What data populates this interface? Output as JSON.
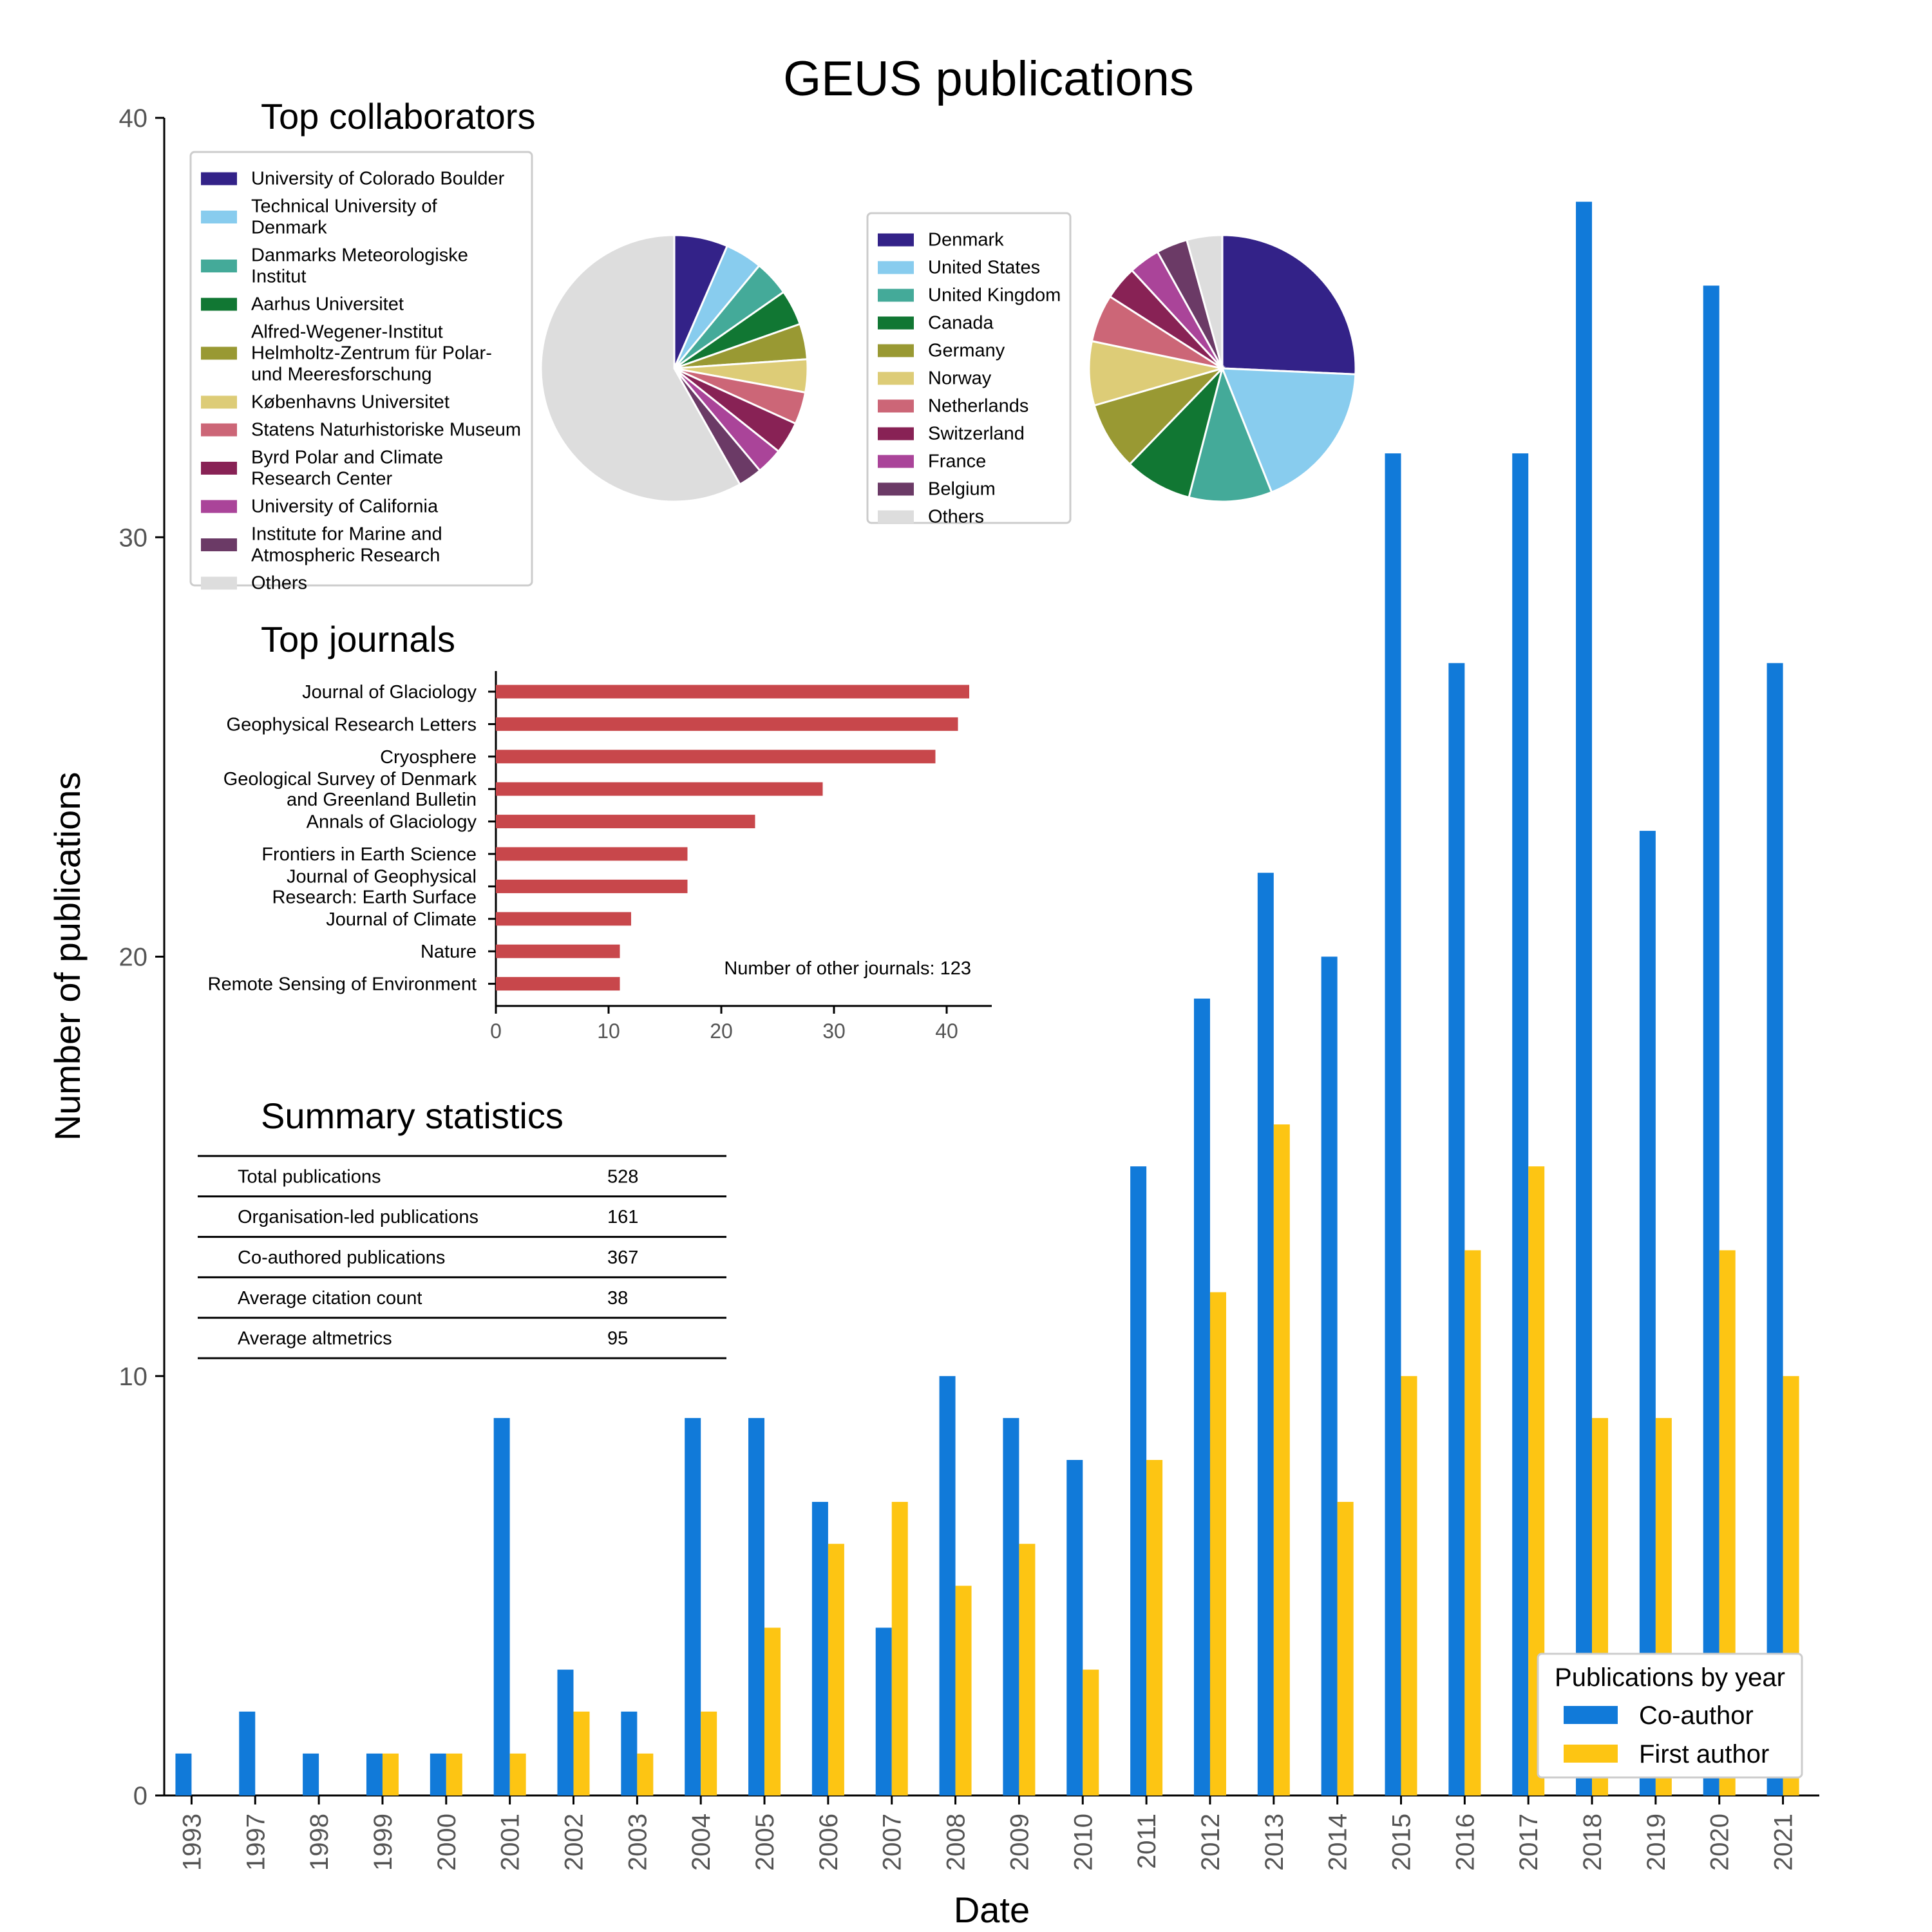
{
  "figure_title": "GEUS publications",
  "colors": {
    "coauthor": "#117ad9",
    "first_author": "#fdc513",
    "journal_bar": "#c8474b",
    "pie_palette": [
      "#332288",
      "#88ccee",
      "#44aa99",
      "#117733",
      "#999933",
      "#ddcc77",
      "#cc6677",
      "#882255",
      "#aa4499",
      "#6b3a66",
      "#dddddd"
    ]
  },
  "chart_data": [
    {
      "id": "main",
      "type": "bar",
      "title": "",
      "xlabel": "Date",
      "ylabel": "Number of publications",
      "ylim": [
        0,
        40
      ],
      "yticks": [
        0,
        10,
        20,
        30,
        40
      ],
      "grid": false,
      "legend_title": "Publications by year",
      "legend_position": "bottom-right",
      "categories": [
        "1993",
        "1997",
        "1998",
        "1999",
        "2000",
        "2001",
        "2002",
        "2003",
        "2004",
        "2005",
        "2006",
        "2007",
        "2008",
        "2009",
        "2010",
        "2011",
        "2012",
        "2013",
        "2014",
        "2015",
        "2016",
        "2017",
        "2018",
        "2019",
        "2020",
        "2021"
      ],
      "series": [
        {
          "name": "Co-author",
          "values": [
            1,
            2,
            1,
            1,
            1,
            9,
            3,
            2,
            9,
            9,
            7,
            4,
            10,
            9,
            8,
            15,
            19,
            22,
            20,
            32,
            27,
            32,
            38,
            23,
            36,
            27
          ]
        },
        {
          "name": "First author",
          "values": [
            0,
            0,
            0,
            1,
            1,
            1,
            2,
            1,
            2,
            4,
            6,
            7,
            5,
            6,
            3,
            8,
            12,
            16,
            7,
            10,
            13,
            15,
            9,
            9,
            13,
            10
          ]
        }
      ]
    },
    {
      "id": "collaborators",
      "type": "pie",
      "title": "Top collaborators",
      "legend_position": "left",
      "labels": [
        "University of Colorado Boulder",
        "Technical University of Denmark",
        "Danmarks Meteorologiske Institut",
        "Aarhus Universitet",
        "Alfred-Wegener-Institut Helmholtz-Zentrum für Polar- und Meeresforschung",
        "Københavns Universitet",
        "Statens Naturhistoriske Museum",
        "Byrd Polar and Climate Research Center",
        "University of California",
        "Institute for Marine and Atmospheric Research",
        "Others"
      ],
      "legend_lines": [
        [
          "University of Colorado Boulder"
        ],
        [
          "Technical University of",
          "Denmark"
        ],
        [
          "Danmarks Meteorologiske",
          "Institut"
        ],
        [
          "Aarhus Universitet"
        ],
        [
          "Alfred-Wegener-Institut",
          "Helmholtz-Zentrum für Polar-",
          "und Meeresforschung"
        ],
        [
          "Københavns Universitet"
        ],
        [
          "Statens Naturhistoriske Museum"
        ],
        [
          "Byrd Polar and Climate",
          "Research Center"
        ],
        [
          "University of California"
        ],
        [
          "Institute for Marine and",
          "Atmospheric Research"
        ],
        [
          "Others"
        ]
      ],
      "values": [
        6.5,
        4.5,
        4.3,
        4.3,
        4.3,
        4.0,
        3.9,
        3.9,
        3.2,
        2.9,
        58.2
      ]
    },
    {
      "id": "countries",
      "type": "pie",
      "title": "",
      "legend_position": "left",
      "labels": [
        "Denmark",
        "United States",
        "United Kingdom",
        "Canada",
        "Germany",
        "Norway",
        "Netherlands",
        "Switzerland",
        "France",
        "Belgium",
        "Others"
      ],
      "legend_lines": [
        [
          "Denmark"
        ],
        [
          "United States"
        ],
        [
          "United Kingdom"
        ],
        [
          "Canada"
        ],
        [
          "Germany"
        ],
        [
          "Norway"
        ],
        [
          "Netherlands"
        ],
        [
          "Switzerland"
        ],
        [
          "France"
        ],
        [
          "Belgium"
        ],
        [
          "Others"
        ]
      ],
      "values": [
        24.5,
        17.4,
        9.6,
        7.8,
        7.9,
        7.4,
        5.5,
        3.9,
        3.6,
        3.6,
        4.1
      ]
    },
    {
      "id": "journals",
      "type": "bar",
      "orientation": "horizontal",
      "title": "Top journals",
      "xlim": [
        0,
        44
      ],
      "xticks": [
        0,
        10,
        20,
        30,
        40
      ],
      "categories": [
        "Journal of Glaciology",
        "Geophysical Research Letters",
        "Cryosphere",
        "Geological Survey of Denmark and Greenland Bulletin",
        "Annals of Glaciology",
        "Frontiers in Earth Science",
        "Journal of Geophysical Research: Earth Surface",
        "Journal of Climate",
        "Nature",
        "Remote Sensing of Environment"
      ],
      "category_lines": [
        [
          "Journal of Glaciology"
        ],
        [
          "Geophysical Research Letters"
        ],
        [
          "Cryosphere"
        ],
        [
          "Geological Survey of Denmark",
          "and Greenland Bulletin"
        ],
        [
          "Annals of Glaciology"
        ],
        [
          "Frontiers in Earth Science"
        ],
        [
          "Journal of Geophysical",
          "Research: Earth Surface"
        ],
        [
          "Journal of Climate"
        ],
        [
          "Nature"
        ],
        [
          "Remote Sensing of Environment"
        ]
      ],
      "values": [
        42,
        41,
        39,
        29,
        23,
        17,
        17,
        12,
        11,
        11
      ],
      "annotation": "Number of other journals: 123"
    },
    {
      "id": "summary",
      "type": "table",
      "title": "Summary statistics",
      "rows": [
        [
          "Total publications",
          "528"
        ],
        [
          "Organisation-led publications",
          "161"
        ],
        [
          "Co-authored publications",
          "367"
        ],
        [
          "Average citation count",
          "38"
        ],
        [
          "Average altmetrics",
          "95"
        ]
      ]
    }
  ]
}
